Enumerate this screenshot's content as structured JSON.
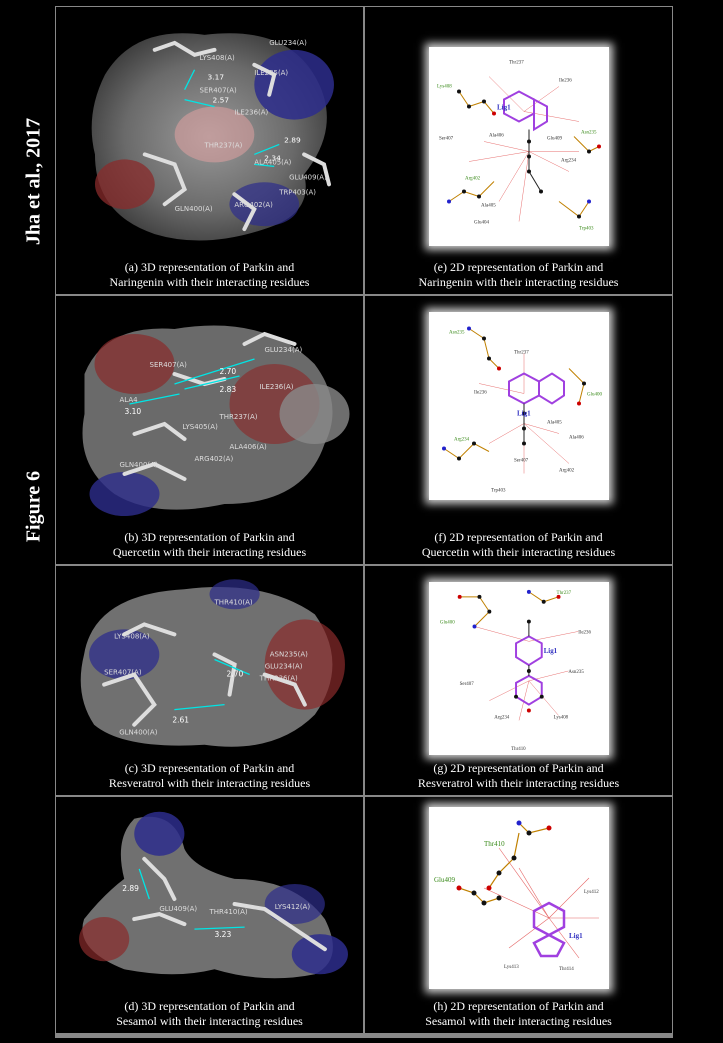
{
  "author_label": "Jha et al., 2017",
  "figure_label": "Figure 6",
  "panels": {
    "a": {
      "line1": "(a) 3D representation of  Parkin and",
      "line2": "Naringenin with their interacting residues",
      "residues": [
        "LYS408(A)",
        "SER407(A)",
        "ILE235(A)",
        "ILE236(A)",
        "THR237(A)",
        "ALA405(A)",
        "GLU409(A)",
        "TRP403(A)",
        "ARG402(A)",
        "GLN400(A)",
        "GLU234(A)"
      ],
      "distances": [
        "3.17",
        "2.57",
        "2.89",
        "2.34"
      ]
    },
    "b": {
      "line1": "(b) 3D representation of  Parkin and",
      "line2": "Quercetin with their interacting residues",
      "residues": [
        "SER407(A)",
        "ALA4",
        "ILE236(A)",
        "THR237(A)",
        "LYS405(A)",
        "GLN400(A)",
        "ARG402(A)",
        "GLU234(A)",
        "ALA406(A)"
      ],
      "distances": [
        "2.70",
        "2.83",
        "3.10"
      ]
    },
    "c": {
      "line1": "(c) 3D representation of  Parkin and",
      "line2": "Resveratrol with their interacting residues",
      "residues": [
        "THR410(A)",
        "LYS408(A)",
        "SER407(A)",
        "GLN400(A)",
        "ASN235(A)",
        "GLU234(A)",
        "THR236(A)"
      ],
      "distances": [
        "2.70",
        "2.61"
      ]
    },
    "d": {
      "line1": "(d) 3D representation of  Parkin and",
      "line2": "Sesamol with their interacting residues",
      "residues": [
        "LYS412(A)",
        "THR410(A)",
        "GLU409(A)"
      ],
      "distances": [
        "2.89",
        "3.23"
      ]
    },
    "e": {
      "line1": "(e) 2D representation of  Parkin and",
      "line2": "Naringenin with their interacting residues",
      "ligand": "Lig1",
      "residues": [
        "Thr237",
        "Ile236",
        "Lys408",
        "Asn235",
        "Ser407",
        "Ala406",
        "Glu409",
        "Arg234",
        "Arg402",
        "Ala405",
        "Glu404",
        "Trp403"
      ]
    },
    "f": {
      "line1": "(f) 2D representation of  Parkin and",
      "line2": "Quercetin with their interacting residues",
      "ligand": "Lig1",
      "residues": [
        "Asn235",
        "Thr237",
        "Ile236",
        "Glu400",
        "Ala405",
        "Ala406",
        "Arg234",
        "Ser407",
        "Arg402",
        "Trp403"
      ]
    },
    "g": {
      "line1": "(g) 2D representation of  Parkin and",
      "line2": "Resveratrol with their interacting residues",
      "ligand": "Lig1",
      "residues": [
        "Thr237",
        "Glu400",
        "Ile236",
        "Asn235",
        "Ser407",
        "Arg234",
        "Lys408",
        "Thr410"
      ]
    },
    "h": {
      "line1": "(h) 2D representation of  Parkin and",
      "line2": "Sesamol with their interacting residues",
      "ligand": "Lig1",
      "residues": [
        "Thr410",
        "Glu409",
        "Lys412",
        "Lys413",
        "Thr414"
      ]
    }
  }
}
